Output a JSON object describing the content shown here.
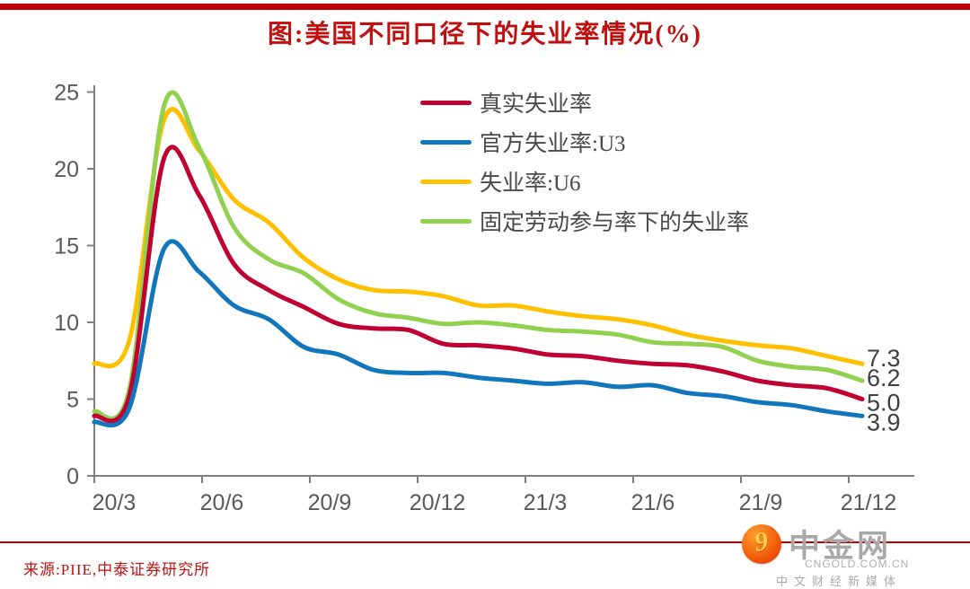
{
  "page": {
    "title": "图:美国不同口径下的失业率情况(%)",
    "source": "来源:PIIE,中泰证券研究所",
    "accent_red": "#C00000",
    "axis_line_color": "#7F7F7F",
    "tick_label_color": "#595959",
    "end_label_color": "#3F3F3F"
  },
  "legend": {
    "items": [
      {
        "label": "真实失业率",
        "color": "#C00030"
      },
      {
        "label": "官方失业率:U3",
        "color": "#1176BC"
      },
      {
        "label": "失业率:U6",
        "color": "#FFC000"
      },
      {
        "label": "固定劳动参与率下的失业率",
        "color": "#92D050"
      }
    ]
  },
  "chart_data": {
    "type": "line",
    "title": "图:美国不同口径下的失业率情况(%)",
    "xlabel": "",
    "ylabel": "",
    "ylim": [
      0,
      25
    ],
    "y_ticks": [
      0,
      5,
      10,
      15,
      20,
      25
    ],
    "x_tick_labels": [
      "20/3",
      "20/6",
      "20/9",
      "20/12",
      "21/3",
      "21/6",
      "21/9",
      "21/12"
    ],
    "grid": false,
    "legend_position": "inside-top-center",
    "categories": [
      "20/2",
      "20/3",
      "20/4",
      "20/5",
      "20/6",
      "20/7",
      "20/8",
      "20/9",
      "20/10",
      "20/11",
      "20/12",
      "21/1",
      "21/2",
      "21/3",
      "21/4",
      "21/5",
      "21/6",
      "21/7",
      "21/8",
      "21/9",
      "21/10",
      "21/11",
      "21/12"
    ],
    "series": [
      {
        "name": "失业率:U6",
        "color": "#FFC000",
        "end_label": "7.3",
        "values": [
          7.3,
          8.8,
          23.2,
          21.2,
          18.0,
          16.5,
          14.2,
          12.8,
          12.1,
          12.0,
          11.7,
          11.1,
          11.1,
          10.7,
          10.4,
          10.2,
          9.8,
          9.2,
          8.8,
          8.5,
          8.3,
          7.8,
          7.3
        ]
      },
      {
        "name": "固定劳动参与率下的失业率",
        "color": "#92D050",
        "end_label": "6.2",
        "values": [
          4.2,
          5.6,
          24.1,
          21.4,
          16.2,
          14.1,
          13.2,
          11.5,
          10.6,
          10.3,
          9.9,
          10.0,
          9.8,
          9.5,
          9.4,
          9.2,
          8.7,
          8.6,
          8.4,
          7.5,
          7.1,
          6.9,
          6.2
        ]
      },
      {
        "name": "真实失业率",
        "color": "#C00030",
        "end_label": "5.0",
        "values": [
          3.9,
          5.2,
          20.7,
          18.3,
          13.8,
          12.1,
          11.0,
          9.9,
          9.6,
          9.5,
          8.6,
          8.5,
          8.3,
          7.9,
          7.8,
          7.5,
          7.3,
          7.2,
          6.8,
          6.2,
          5.9,
          5.7,
          5.0
        ]
      },
      {
        "name": "官方失业率:U3",
        "color": "#1176BC",
        "end_label": "3.9",
        "values": [
          3.5,
          4.4,
          14.8,
          13.3,
          11.1,
          10.2,
          8.4,
          7.9,
          6.9,
          6.7,
          6.7,
          6.4,
          6.2,
          6.0,
          6.1,
          5.8,
          5.9,
          5.4,
          5.2,
          4.8,
          4.6,
          4.2,
          3.9
        ]
      }
    ]
  },
  "watermark": {
    "brand": "中金网",
    "domain": "CNGOLD.COM.CN",
    "tagline": "中文财经新媒体",
    "logo": "orange-swirl-icon"
  }
}
